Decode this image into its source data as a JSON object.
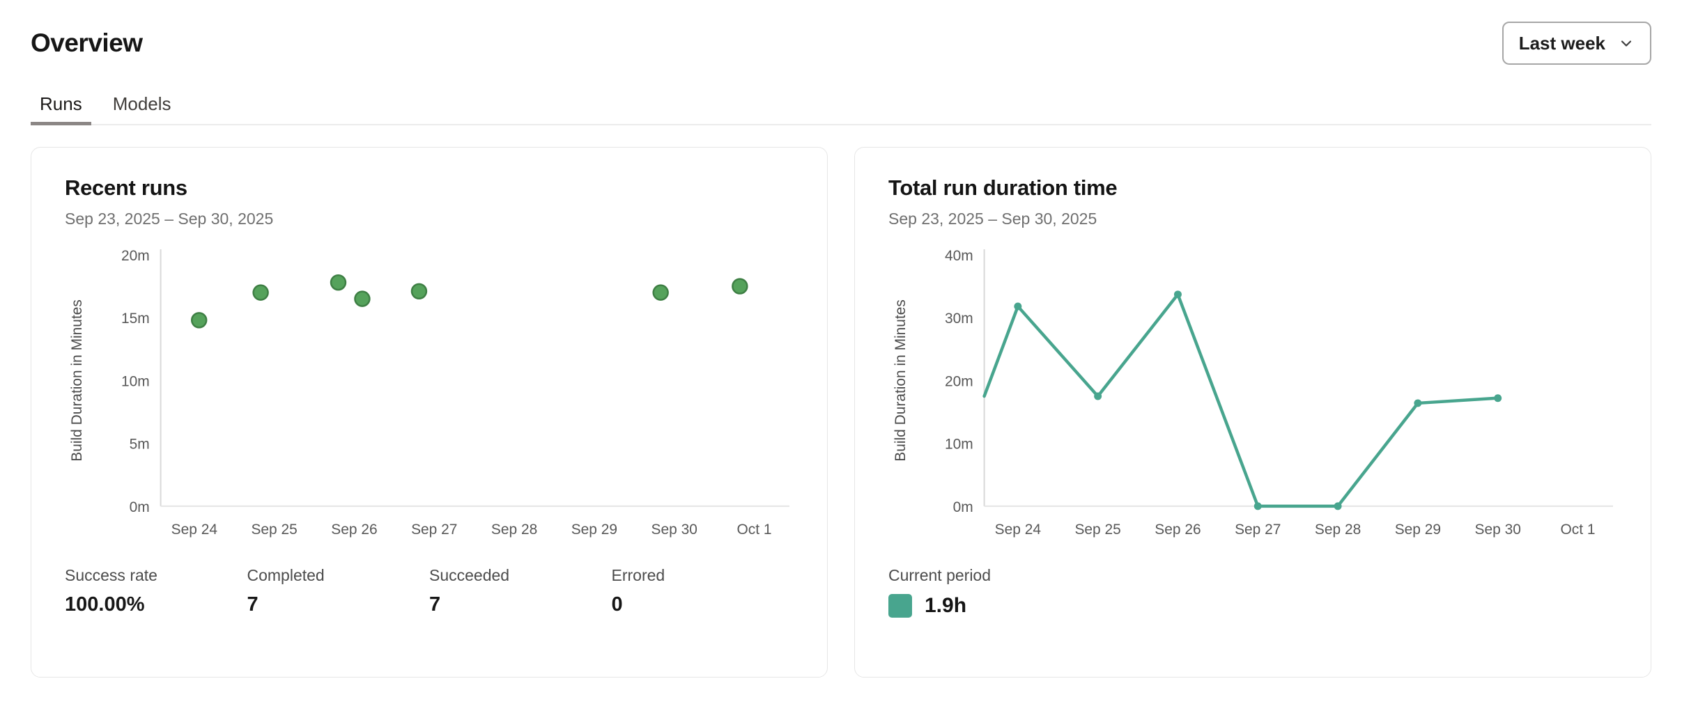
{
  "header": {
    "title": "Overview",
    "range_label": "Last week",
    "range_icon": "chevron-down-icon"
  },
  "tabs": [
    {
      "label": "Runs",
      "active": true
    },
    {
      "label": "Models",
      "active": false
    }
  ],
  "cards": {
    "recent_runs": {
      "title": "Recent runs",
      "date_range": "Sep 23, 2025 – Sep 30, 2025",
      "stats": [
        {
          "label": "Success rate",
          "value": "100.00%"
        },
        {
          "label": "Completed",
          "value": "7"
        },
        {
          "label": "Succeeded",
          "value": "7"
        },
        {
          "label": "Errored",
          "value": "0"
        }
      ]
    },
    "total_duration": {
      "title": "Total run duration time",
      "date_range": "Sep 23, 2025 – Sep 30, 2025",
      "legend": {
        "label": "Current period",
        "value": "1.9h",
        "swatch_color": "#48a58e"
      }
    }
  },
  "chart_data": [
    {
      "type": "scatter",
      "title": "Recent runs",
      "ylabel": "Build Duration in Minutes",
      "xlabel": "",
      "ylim": [
        0,
        20
      ],
      "y_tick_values": [
        0,
        5,
        10,
        15,
        20
      ],
      "y_tick_labels": [
        "0m",
        "5m",
        "10m",
        "15m",
        "20m"
      ],
      "x_ticks": [
        "Sep 24",
        "Sep 25",
        "Sep 26",
        "Sep 27",
        "Sep 28",
        "Sep 29",
        "Sep 30",
        "Oct 1"
      ],
      "x_domain": [
        0.58,
        8.44
      ],
      "grid": false,
      "legend_position": "none",
      "units": "minutes",
      "point_color": "#55a25b",
      "point_stroke": "#3e7f44",
      "points": [
        {
          "x": 1.06,
          "y": 14.8,
          "date": "Sep 24"
        },
        {
          "x": 1.83,
          "y": 17.0,
          "date": "Sep 25"
        },
        {
          "x": 2.8,
          "y": 17.8,
          "date": "Sep 26"
        },
        {
          "x": 3.1,
          "y": 16.5,
          "date": "Sep 26"
        },
        {
          "x": 3.81,
          "y": 17.1,
          "date": "Sep 27"
        },
        {
          "x": 6.83,
          "y": 17.0,
          "date": "Sep 30"
        },
        {
          "x": 7.82,
          "y": 17.5,
          "date": "Oct 1"
        }
      ]
    },
    {
      "type": "line",
      "title": "Total run duration time",
      "ylabel": "Build Duration in Minutes",
      "xlabel": "",
      "ylim": [
        0,
        40
      ],
      "y_tick_values": [
        0,
        10,
        20,
        30,
        40
      ],
      "y_tick_labels": [
        "0m",
        "10m",
        "20m",
        "30m",
        "40m"
      ],
      "x_ticks": [
        "Sep 24",
        "Sep 25",
        "Sep 26",
        "Sep 27",
        "Sep 28",
        "Sep 29",
        "Sep 30",
        "Oct 1"
      ],
      "x_domain": [
        0.58,
        8.44
      ],
      "grid": false,
      "legend_position": "bottom",
      "units": "minutes",
      "line_color": "#48a58e",
      "points": [
        {
          "x": 0.58,
          "y": 17.5,
          "date": "Sep 23"
        },
        {
          "x": 1.0,
          "y": 31.8,
          "date": "Sep 24"
        },
        {
          "x": 2.0,
          "y": 17.5,
          "date": "Sep 25"
        },
        {
          "x": 3.0,
          "y": 33.7,
          "date": "Sep 26"
        },
        {
          "x": 4.0,
          "y": 0,
          "date": "Sep 27"
        },
        {
          "x": 5.0,
          "y": 0,
          "date": "Sep 28"
        },
        {
          "x": 6.0,
          "y": 16.4,
          "date": "Sep 29"
        },
        {
          "x": 7.0,
          "y": 17.2,
          "date": "Sep 30"
        }
      ]
    }
  ]
}
